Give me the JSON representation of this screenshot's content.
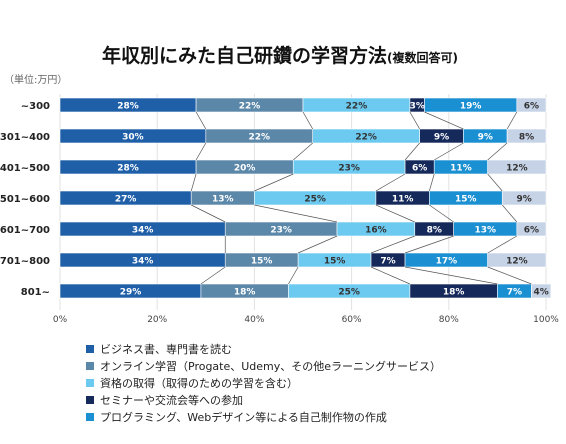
{
  "chart_data": {
    "type": "bar",
    "orientation": "horizontal",
    "stacked": true,
    "percent": true,
    "title": "年収別にみた自己研鑽の学習方法",
    "title_suffix": "(複数回答可)",
    "unit_label": "（単位:万円）",
    "categories": [
      "~300",
      "301~400",
      "401~500",
      "501~600",
      "601~700",
      "701~800",
      "801~"
    ],
    "xlim": [
      0,
      100
    ],
    "x_ticks": [
      "0%",
      "20%",
      "40%",
      "60%",
      "80%",
      "100%"
    ],
    "legend_position": "bottom",
    "series": [
      {
        "name": "ビジネス書、専門書を読む",
        "color": "#1f5fa8",
        "values": [
          28,
          30,
          28,
          27,
          34,
          34,
          29
        ],
        "labels": [
          "28%",
          "30%",
          "28%",
          "27%",
          "34%",
          "34%",
          "29%"
        ]
      },
      {
        "name": "オンライン学習（Progate、Udemy、その他eラーニングサービス）",
        "color": "#5b87a9",
        "values": [
          22,
          22,
          20,
          13,
          23,
          15,
          18
        ],
        "labels": [
          "22%",
          "22%",
          "20%",
          "13%",
          "23%",
          "15%",
          "18%"
        ]
      },
      {
        "name": "資格の取得（取得のための学習を含む）",
        "color": "#6cc9ef",
        "values": [
          22,
          22,
          23,
          25,
          16,
          15,
          25
        ],
        "labels": [
          "22%",
          "22%",
          "23%",
          "25%",
          "16%",
          "15%",
          "25%"
        ]
      },
      {
        "name": "セミナーや交流会等への参加",
        "color": "#15295a",
        "values": [
          3,
          9,
          6,
          11,
          8,
          7,
          18
        ],
        "labels": [
          "3%",
          "9%",
          "6%",
          "11%",
          "8%",
          "7%",
          "18%"
        ]
      },
      {
        "name": "プログラミング、Webデザイン等による自己制作物の作成",
        "color": "#1a8fd1",
        "values": [
          19,
          9,
          11,
          15,
          13,
          17,
          7
        ],
        "labels": [
          "19%",
          "9%",
          "11%",
          "15%",
          "13%",
          "17%",
          "7%"
        ]
      },
      {
        "name": "",
        "color": "#c6d3e6",
        "values": [
          6,
          8,
          12,
          9,
          6,
          12,
          4
        ],
        "labels": [
          "6%",
          "8%",
          "12%",
          "9%",
          "6%",
          "12%",
          "4%"
        ]
      }
    ]
  }
}
